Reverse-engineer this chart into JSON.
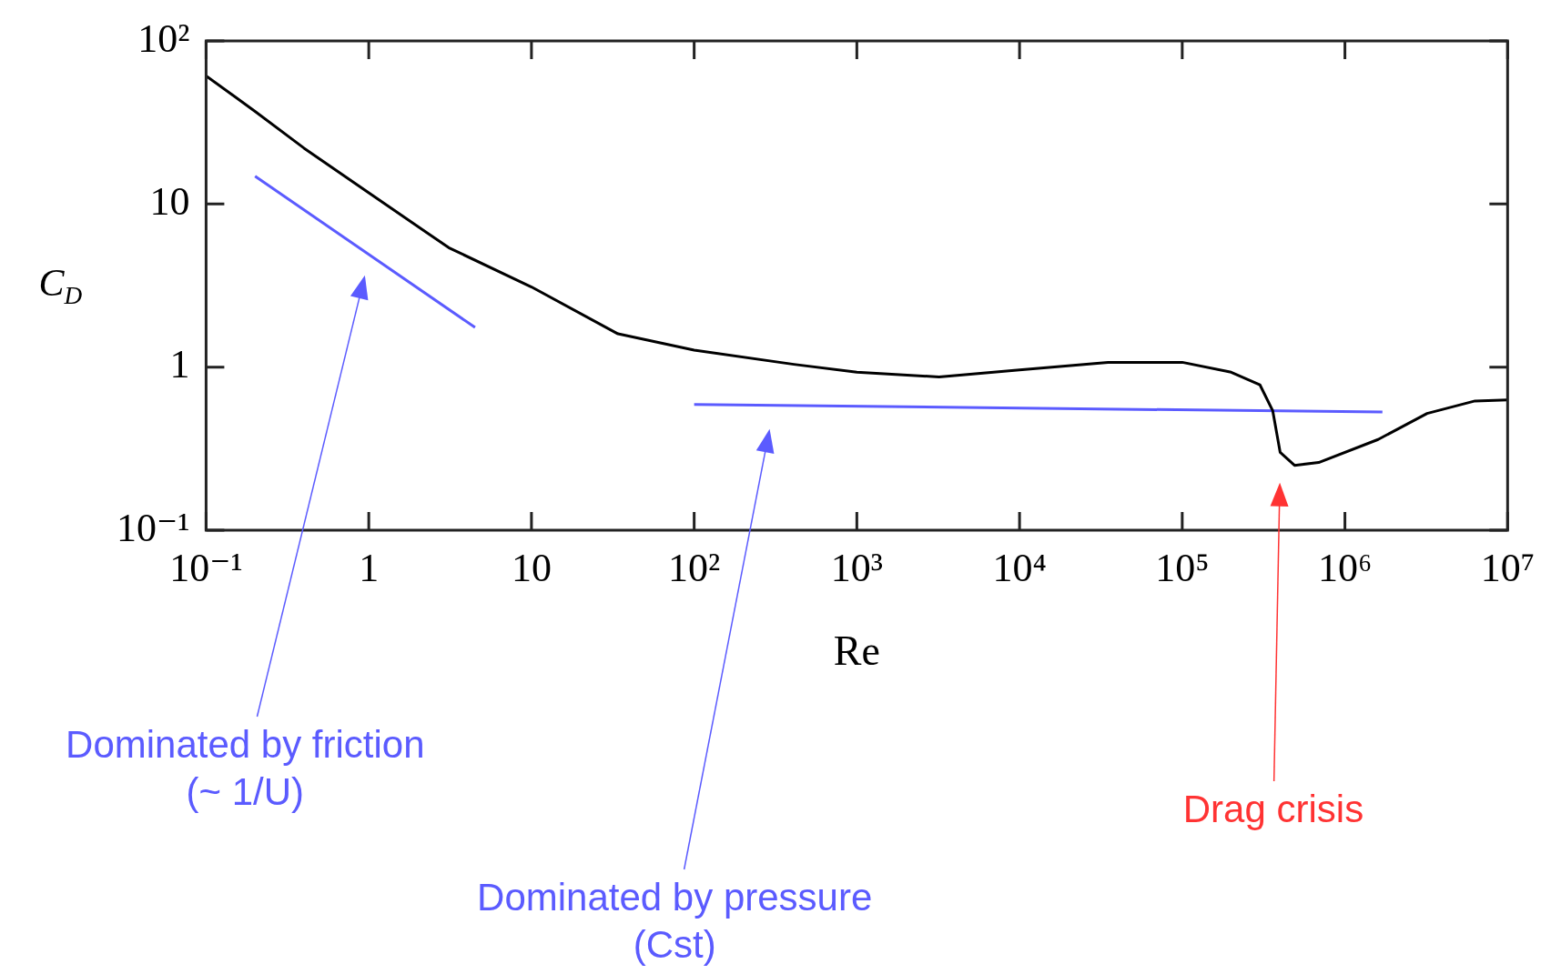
{
  "chart_data": {
    "type": "line",
    "xlabel": "Re",
    "ylabel": "C$_{D}$",
    "log": "xy",
    "grid": false,
    "legend": false,
    "marker": "none",
    "line_style": "solid",
    "xlim": [
      0.1,
      10000000
    ],
    "ylim": [
      0.1,
      100
    ],
    "xticks": [
      {
        "value": 0.1,
        "label": "10⁻¹"
      },
      1,
      10,
      {
        "value": 100,
        "label": "10²"
      },
      {
        "value": 1000,
        "label": "10³"
      },
      {
        "value": 10000,
        "label": "10⁴"
      },
      {
        "value": 100000,
        "label": "10⁵"
      },
      {
        "value": 1000000,
        "label": "10⁶"
      },
      {
        "value": 10000000,
        "label": "10⁷"
      }
    ],
    "yticks": [
      {
        "value": 0.1,
        "label": "10⁻¹"
      },
      1,
      10,
      {
        "value": 100,
        "label": "10²"
      }
    ],
    "series": [
      {
        "color": "#000000",
        "x": [
          0.1,
          0.2,
          0.4,
          1,
          3.1,
          10,
          34,
          100,
          410,
          1000,
          3200,
          10000,
          35000,
          100000,
          200000,
          300000,
          360000,
          400000,
          490000,
          690000,
          1600000,
          3200000,
          6300000,
          10000000
        ],
        "values": [
          61,
          37,
          22,
          11.7,
          5.4,
          3.1,
          1.6,
          1.27,
          1.04,
          0.93,
          0.87,
          0.96,
          1.07,
          1.07,
          0.93,
          0.78,
          0.54,
          0.3,
          0.25,
          0.26,
          0.36,
          0.52,
          0.62,
          0.63
        ]
      },
      {
        "color": "#5b5bff",
        "x": [
          0.2,
          4.5
        ],
        "values": [
          14.8,
          1.75
        ]
      },
      {
        "color": "#5b5bff",
        "x": [
          100,
          1700000
        ],
        "values": [
          0.59,
          0.53
        ]
      }
    ],
    "annotations": [
      "Dominated by friction\n(~ 1/U)",
      "Dominated by pressure\n(Cst)",
      "Drag crisis"
    ]
  }
}
